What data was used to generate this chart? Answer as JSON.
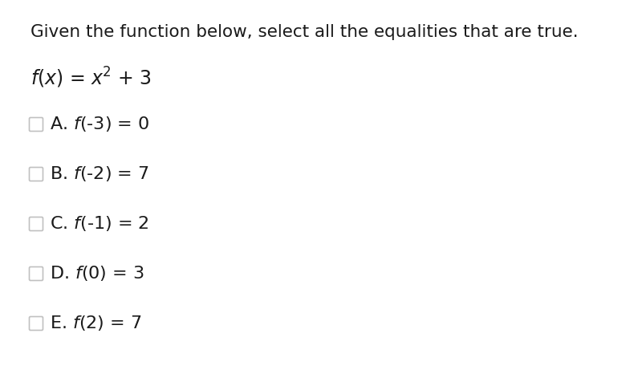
{
  "background_color": "#ffffff",
  "title_text": "Given the function below, select all the equalities that are true.",
  "title_fontsize": 15.5,
  "title_color": "#1a1a1a",
  "function_fontsize": 17,
  "options": [
    {
      "label": "A.",
      "expr": "$\\it{f}$(-3) = 0"
    },
    {
      "label": "B.",
      "expr": "$\\it{f}$(-2) = 7"
    },
    {
      "label": "C.",
      "expr": "$\\it{f}$(-1) = 2"
    },
    {
      "label": "D.",
      "expr": "$\\it{f}$(0) = 3"
    },
    {
      "label": "E.",
      "expr": "$\\it{f}$(2) = 7"
    }
  ],
  "option_fontsize": 16,
  "checkbox_color": "#c0c0c0",
  "text_color": "#1a1a1a"
}
